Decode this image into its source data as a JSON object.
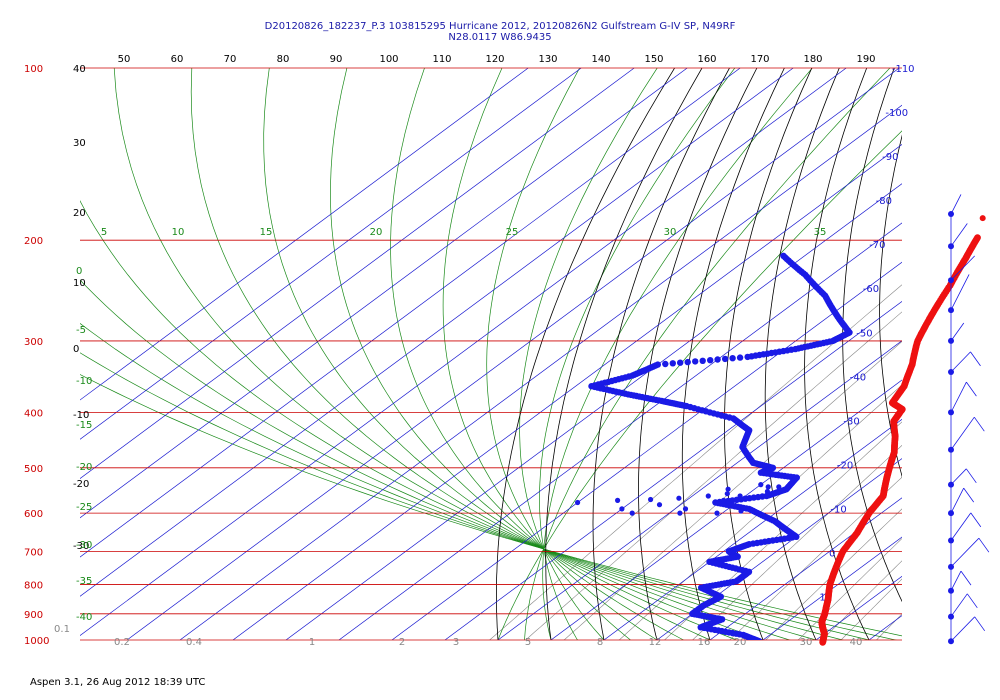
{
  "title_line1": "D20120826_182237_P.3 103815295 Hurricane 2012, 20120826N2 Gulfstream G-IV SP, N49RF",
  "title_line2": "N28.0117 W86.9435",
  "footer": "Aspen 3.1, 26 Aug 2012  18:39 UTC",
  "colors": {
    "isobar": "#cc0000",
    "isotherm": "#1a1ad0",
    "dry_adiabat": "#000000",
    "moist_adiabat": "#1a8a1a",
    "mixing_ratio": "#888888",
    "temperature": "#ee1111",
    "dewpoint": "#1a1ae6",
    "wind": "#1a1ae6"
  },
  "chart_data": {
    "type": "skew-t",
    "pressure_axis": {
      "ticks": [
        100,
        200,
        300,
        400,
        500,
        600,
        700,
        800,
        900,
        1000
      ],
      "labels": [
        "100",
        "200",
        "300",
        "400",
        "500",
        "600",
        "700",
        "800",
        "900",
        "1000"
      ]
    },
    "top_axis_ticks": [
      "50",
      "60",
      "70",
      "80",
      "90",
      "100",
      "110",
      "120",
      "130",
      "140",
      "150",
      "160",
      "170",
      "180",
      "190"
    ],
    "isotherm_labels": [
      "-110",
      "-100",
      "-90",
      "-80",
      "-70",
      "-60",
      "-50",
      "-40",
      "-30",
      "-20",
      "-10",
      "0",
      "10",
      "20",
      "30"
    ],
    "left_scale_labels": [
      "40",
      "30",
      "20",
      "10",
      "0",
      "-10",
      "-20",
      "-30"
    ],
    "moist_left_labels": [
      "0",
      "-5",
      "-10",
      "-15",
      "-20",
      "-25",
      "-30",
      "-35",
      "-40"
    ],
    "theta_e_labels": [
      "5",
      "10",
      "15",
      "20",
      "25",
      "30",
      "35"
    ],
    "mixing_ratio_labels": [
      "0.1",
      "0.2",
      "0.4",
      "1",
      "2",
      "3",
      "5",
      "8",
      "12",
      "16",
      "20",
      "30",
      "40"
    ],
    "temperature_profile": [
      {
        "p": 198,
        "t": -52
      },
      {
        "p": 215,
        "t": -49
      },
      {
        "p": 240,
        "t": -45
      },
      {
        "p": 270,
        "t": -41
      },
      {
        "p": 300,
        "t": -37
      },
      {
        "p": 330,
        "t": -32
      },
      {
        "p": 360,
        "t": -28
      },
      {
        "p": 385,
        "t": -26
      },
      {
        "p": 395,
        "t": -22.5
      },
      {
        "p": 415,
        "t": -21
      },
      {
        "p": 440,
        "t": -17
      },
      {
        "p": 470,
        "t": -13
      },
      {
        "p": 500,
        "t": -10
      },
      {
        "p": 530,
        "t": -7
      },
      {
        "p": 560,
        "t": -4
      },
      {
        "p": 600,
        "t": -2.3
      },
      {
        "p": 650,
        "t": 0.5
      },
      {
        "p": 700,
        "t": 2.5
      },
      {
        "p": 750,
        "t": 5.5
      },
      {
        "p": 800,
        "t": 8.5
      },
      {
        "p": 850,
        "t": 12
      },
      {
        "p": 900,
        "t": 15
      },
      {
        "p": 930,
        "t": 16.5
      },
      {
        "p": 950,
        "t": 18
      },
      {
        "p": 975,
        "t": 20
      },
      {
        "p": 1012,
        "t": 22
      }
    ],
    "temperature_isolated_point": {
      "p": 183,
      "t": -56
    },
    "dewpoint_profile": [
      {
        "p": 213,
        "t": -84
      },
      {
        "p": 230,
        "t": -75
      },
      {
        "p": 250,
        "t": -66
      },
      {
        "p": 270,
        "t": -59
      },
      {
        "p": 290,
        "t": -52
      },
      {
        "p": 300,
        "t": -53
      },
      {
        "p": 310,
        "t": -58
      },
      {
        "p": 320,
        "t": -65
      },
      {
        "p": 330,
        "t": -80
      },
      {
        "p": 345,
        "t": -82
      },
      {
        "p": 360,
        "t": -87
      },
      {
        "p": 372,
        "t": -78
      },
      {
        "p": 382,
        "t": -70
      },
      {
        "p": 390,
        "t": -64
      },
      {
        "p": 410,
        "t": -52
      },
      {
        "p": 430,
        "t": -46
      },
      {
        "p": 460,
        "t": -43
      },
      {
        "p": 490,
        "t": -37
      },
      {
        "p": 500,
        "t": -32
      },
      {
        "p": 510,
        "t": -33
      },
      {
        "p": 520,
        "t": -25
      },
      {
        "p": 545,
        "t": -24
      },
      {
        "p": 560,
        "t": -26
      },
      {
        "p": 575,
        "t": -34
      },
      {
        "p": 590,
        "t": -26
      },
      {
        "p": 620,
        "t": -18
      },
      {
        "p": 640,
        "t": -14
      },
      {
        "p": 660,
        "t": -10
      },
      {
        "p": 680,
        "t": -17
      },
      {
        "p": 700,
        "t": -19
      },
      {
        "p": 715,
        "t": -16
      },
      {
        "p": 730,
        "t": -20
      },
      {
        "p": 760,
        "t": -10
      },
      {
        "p": 790,
        "t": -10
      },
      {
        "p": 810,
        "t": -15
      },
      {
        "p": 840,
        "t": -9
      },
      {
        "p": 870,
        "t": -10
      },
      {
        "p": 900,
        "t": -10
      },
      {
        "p": 920,
        "t": -3
      },
      {
        "p": 950,
        "t": -5
      },
      {
        "p": 980,
        "t": 5
      },
      {
        "p": 1007,
        "t": 10
      }
    ],
    "dewpoint_scatter": [
      {
        "p": 575,
        "t": -60
      },
      {
        "p": 570,
        "t": -53
      },
      {
        "p": 568,
        "t": -47
      },
      {
        "p": 565,
        "t": -42
      },
      {
        "p": 560,
        "t": -37
      },
      {
        "p": 555,
        "t": -34
      },
      {
        "p": 535,
        "t": -30
      },
      {
        "p": 560,
        "t": -31
      },
      {
        "p": 590,
        "t": -38
      },
      {
        "p": 580,
        "t": -44
      },
      {
        "p": 590,
        "t": -50
      },
      {
        "p": 600,
        "t": -47
      },
      {
        "p": 600,
        "t": -38
      },
      {
        "p": 600,
        "t": -31
      },
      {
        "p": 595,
        "t": -27
      },
      {
        "p": 540,
        "t": -28
      },
      {
        "p": 540,
        "t": -26
      },
      {
        "p": 550,
        "t": -27
      },
      {
        "p": 545,
        "t": -35
      },
      {
        "p": 570,
        "t": -33
      }
    ],
    "wind_barb_pressures": [
      180,
      205,
      235,
      265,
      300,
      340,
      400,
      465,
      535,
      600,
      670,
      745,
      820,
      910,
      1005
    ]
  }
}
